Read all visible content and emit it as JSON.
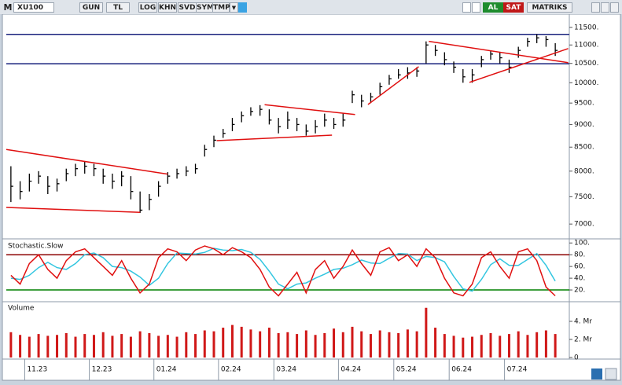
{
  "toolbar": {
    "logo": "M",
    "symbol": "XU100",
    "buttons": [
      "GUN",
      "TL",
      "LOG",
      "KHN",
      "SVD",
      "SYM",
      "TMP"
    ],
    "buy": "AL",
    "sell": "SAT",
    "brand": "MATRIKS"
  },
  "chart_data": [
    {
      "type": "ohlc",
      "log_scale": true,
      "color": "#000000",
      "ylim": [
        6770,
        11890
      ],
      "yticks": [
        {
          "value": 11500,
          "label": "11500."
        },
        {
          "value": 11000,
          "label": "11000."
        },
        {
          "value": 10500,
          "label": "10500."
        },
        {
          "value": 10000,
          "label": "10000."
        },
        {
          "value": 9500,
          "label": "9500."
        },
        {
          "value": 9000,
          "label": "9000."
        },
        {
          "value": 8500,
          "label": "8500."
        },
        {
          "value": 8000,
          "label": "8000."
        },
        {
          "value": 7500,
          "label": "7500."
        },
        {
          "value": 7000,
          "label": "7000."
        }
      ],
      "high": [
        8100,
        7800,
        7950,
        8000,
        7900,
        7850,
        8050,
        8150,
        8200,
        8150,
        8050,
        7950,
        8000,
        7900,
        7600,
        7550,
        7800,
        7980,
        8050,
        8100,
        8150,
        8550,
        8750,
        8900,
        9150,
        9300,
        9400,
        9450,
        9350,
        9150,
        9300,
        9150,
        9000,
        9100,
        9250,
        9150,
        9250,
        9800,
        9700,
        9750,
        10000,
        10200,
        10350,
        10400,
        10400,
        11100,
        11000,
        10800,
        10550,
        10350,
        10350,
        10700,
        10850,
        10800,
        10600,
        10950,
        11200,
        11300,
        11250,
        11050
      ],
      "low": [
        7400,
        7450,
        7600,
        7750,
        7550,
        7600,
        7800,
        7900,
        7950,
        7900,
        7750,
        7650,
        7700,
        7450,
        7200,
        7250,
        7500,
        7750,
        7850,
        7900,
        7950,
        8300,
        8500,
        8700,
        8850,
        9050,
        9200,
        9200,
        9000,
        8800,
        8900,
        8850,
        8750,
        8800,
        8950,
        8900,
        8950,
        9500,
        9400,
        9500,
        9700,
        9950,
        10100,
        10100,
        10150,
        10500,
        10700,
        10450,
        10250,
        10000,
        10000,
        10400,
        10600,
        10500,
        10250,
        10650,
        10950,
        11050,
        10950,
        10700
      ],
      "close": [
        7700,
        7600,
        7800,
        7900,
        7700,
        7750,
        7950,
        8050,
        8100,
        8050,
        7900,
        7800,
        7900,
        7600,
        7250,
        7450,
        7700,
        7900,
        7950,
        8000,
        8050,
        8450,
        8650,
        8800,
        9000,
        9200,
        9300,
        9350,
        9100,
        8950,
        9100,
        9000,
        8850,
        8950,
        9100,
        9000,
        9100,
        9700,
        9550,
        9650,
        9900,
        10100,
        10200,
        10250,
        10300,
        11000,
        10850,
        10600,
        10400,
        10150,
        10200,
        10600,
        10750,
        10650,
        10400,
        10850,
        11100,
        11200,
        11150,
        10850
      ],
      "levels": [
        11297,
        10490
      ],
      "level_color": "#1a237e",
      "trendline_color": "#e01010",
      "trendlines": [
        {
          "x": [
            -0.5,
            17
          ],
          "y": [
            8450,
            7940
          ]
        },
        {
          "x": [
            -0.5,
            14
          ],
          "y": [
            7300,
            7210
          ]
        },
        {
          "x": [
            27.5,
            37.3
          ],
          "y": [
            9460,
            9230
          ]
        },
        {
          "x": [
            22.3,
            34.8
          ],
          "y": [
            8640,
            8760
          ]
        },
        {
          "x": [
            38.7,
            44.2
          ],
          "y": [
            9465,
            10415
          ]
        },
        {
          "x": [
            45.3,
            60.4
          ],
          "y": [
            11100,
            10520
          ]
        },
        {
          "x": [
            49.7,
            60.4
          ],
          "y": [
            10010,
            10900
          ]
        }
      ]
    },
    {
      "type": "line",
      "title": "Stochastic.Slow",
      "ylim": [
        0,
        103
      ],
      "yticks": [
        {
          "value": 100,
          "label": "100."
        },
        {
          "value": 80,
          "label": "80."
        },
        {
          "value": 60,
          "label": "60."
        },
        {
          "value": 40,
          "label": "40."
        },
        {
          "value": 20,
          "label": "20."
        }
      ],
      "levels": [
        80,
        20
      ],
      "level_colors": [
        "#8b0000",
        "#008000"
      ],
      "series": [
        {
          "color": "#e01010",
          "values": [
            45,
            30,
            65,
            80,
            55,
            40,
            70,
            85,
            90,
            75,
            60,
            45,
            70,
            40,
            15,
            30,
            75,
            90,
            85,
            70,
            88,
            95,
            90,
            80,
            92,
            85,
            75,
            55,
            25,
            10,
            30,
            50,
            15,
            55,
            70,
            40,
            60,
            88,
            65,
            45,
            85,
            92,
            70,
            80,
            60,
            90,
            75,
            40,
            15,
            10,
            30,
            75,
            85,
            60,
            40,
            85,
            90,
            70,
            25,
            10
          ]
        },
        {
          "color": "#33c6e0",
          "values": [
            40,
            38,
            45,
            58,
            67,
            58,
            55,
            65,
            80,
            83,
            75,
            60,
            58,
            52,
            42,
            28,
            40,
            65,
            83,
            82,
            81,
            84,
            91,
            88,
            87,
            89,
            84,
            72,
            52,
            30,
            22,
            30,
            32,
            40,
            47,
            55,
            57,
            63,
            71,
            66,
            65,
            74,
            82,
            81,
            70,
            77,
            75,
            68,
            43,
            22,
            18,
            38,
            63,
            73,
            62,
            62,
            72,
            82,
            62,
            35
          ]
        }
      ]
    },
    {
      "type": "bar",
      "title": "Volume",
      "color": "#d01818",
      "ylim": [
        0,
        6
      ],
      "yticks": [
        {
          "value": 4,
          "label": "4. Mr"
        },
        {
          "value": 2,
          "label": "2. Mr"
        },
        0
      ],
      "values": [
        2.8,
        2.5,
        2.3,
        2.6,
        2.4,
        2.5,
        2.7,
        2.3,
        2.6,
        2.5,
        2.8,
        2.4,
        2.6,
        2.3,
        2.9,
        2.7,
        2.4,
        2.5,
        2.3,
        2.8,
        2.6,
        3.0,
        2.9,
        3.3,
        3.6,
        3.4,
        3.1,
        2.9,
        3.3,
        2.7,
        2.8,
        2.6,
        3.0,
        2.5,
        2.7,
        3.2,
        2.8,
        3.4,
        2.9,
        2.6,
        3.0,
        2.8,
        2.7,
        3.1,
        2.9,
        5.5,
        3.3,
        2.6,
        2.4,
        2.2,
        2.3,
        2.5,
        2.7,
        2.4,
        2.6,
        2.9,
        2.5,
        2.8,
        3.0,
        2.6
      ],
      "categories": [
        null,
        null,
        "11.23",
        null,
        null,
        null,
        null,
        null,
        null,
        "12.23",
        null,
        null,
        null,
        null,
        null,
        null,
        "01.24",
        null,
        null,
        null,
        null,
        null,
        null,
        "02.24",
        null,
        null,
        null,
        null,
        null,
        "03.24",
        null,
        null,
        null,
        null,
        null,
        null,
        "04.24",
        null,
        null,
        null,
        null,
        null,
        "05.24",
        null,
        null,
        null,
        null,
        null,
        "06.24",
        null,
        null,
        null,
        null,
        null,
        "07.24",
        null,
        null,
        null,
        null,
        null
      ]
    }
  ]
}
